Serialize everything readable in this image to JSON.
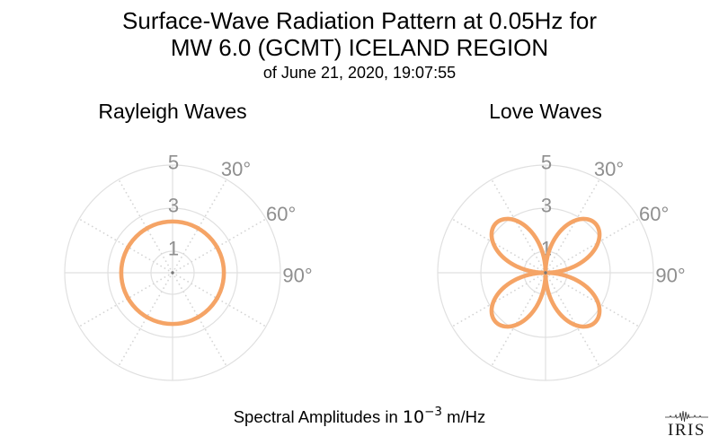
{
  "header": {
    "title_line1": "Surface-Wave Radiation Pattern at 0.05Hz for",
    "title_line2": "MW 6.0 (GCMT) ICELAND REGION",
    "subtitle": "of June 21, 2020, 19:07:55"
  },
  "caption": {
    "prefix": "Spectral Amplitudes in ",
    "base": "10",
    "exponent": "−3",
    "suffix": " m/Hz"
  },
  "logo": {
    "text": "IRIS",
    "icon": "seismogram-icon"
  },
  "colors": {
    "curve": "#F5A466",
    "grid": "#E0E0E0",
    "grid_dots": "#D5D5D5",
    "tick_label": "#8F8F8F",
    "center_dot": "#777777",
    "title": "#000000",
    "logo": "#2B2B2B"
  },
  "chart_data": [
    {
      "type": "line",
      "projection": "polar",
      "title": "Rayleigh Waves",
      "theta_zero": "up",
      "theta_direction": "clockwise",
      "r_max": 5,
      "r_ticks": [
        1,
        3,
        5
      ],
      "theta_tick_deg": [
        30,
        60,
        90
      ],
      "theta_tick_labels": [
        "30°",
        "60°",
        "90°"
      ],
      "solid_axes_deg": [
        0,
        90,
        180,
        270
      ],
      "dotted_spokes_deg": [
        30,
        60,
        120,
        150,
        210,
        240,
        300,
        330
      ],
      "grid": "on",
      "legend": "none",
      "units": "10^-3 m/Hz",
      "series": [
        {
          "name": "Rayleigh-wave spectral amplitude",
          "model": {
            "shape": "circle",
            "amplitude": 2.38,
            "harmonic": 0,
            "rotation_deg": 0
          },
          "theta_step_deg": 15,
          "r_values": [
            2.38,
            2.38,
            2.38,
            2.38,
            2.38,
            2.38,
            2.38,
            2.38,
            2.38,
            2.38,
            2.38,
            2.38,
            2.38,
            2.38,
            2.38,
            2.38,
            2.38,
            2.38,
            2.38,
            2.38,
            2.38,
            2.38,
            2.38,
            2.38
          ]
        }
      ]
    },
    {
      "type": "line",
      "projection": "polar",
      "title": "Love Waves",
      "theta_zero": "up",
      "theta_direction": "clockwise",
      "r_max": 5,
      "r_ticks": [
        1,
        3,
        5
      ],
      "theta_tick_deg": [
        30,
        60,
        90
      ],
      "theta_tick_labels": [
        "30°",
        "60°",
        "90°"
      ],
      "solid_axes_deg": [
        0,
        90,
        180,
        270
      ],
      "dotted_spokes_deg": [
        30,
        60,
        120,
        150,
        210,
        240,
        300,
        330
      ],
      "grid": "on",
      "legend": "none",
      "units": "10^-3 m/Hz",
      "series": [
        {
          "name": "Love-wave spectral amplitude",
          "model": {
            "shape": "rose",
            "amplitude": 3.25,
            "harmonic": 2,
            "rotation_deg": 0
          },
          "theta_step_deg": 15,
          "r_values": [
            0,
            1.63,
            2.81,
            3.25,
            2.81,
            1.63,
            0,
            1.63,
            2.81,
            3.25,
            2.81,
            1.63,
            0,
            1.63,
            2.81,
            3.25,
            2.81,
            1.63,
            0,
            1.63,
            2.81,
            3.25,
            2.81,
            1.63
          ]
        }
      ]
    }
  ]
}
